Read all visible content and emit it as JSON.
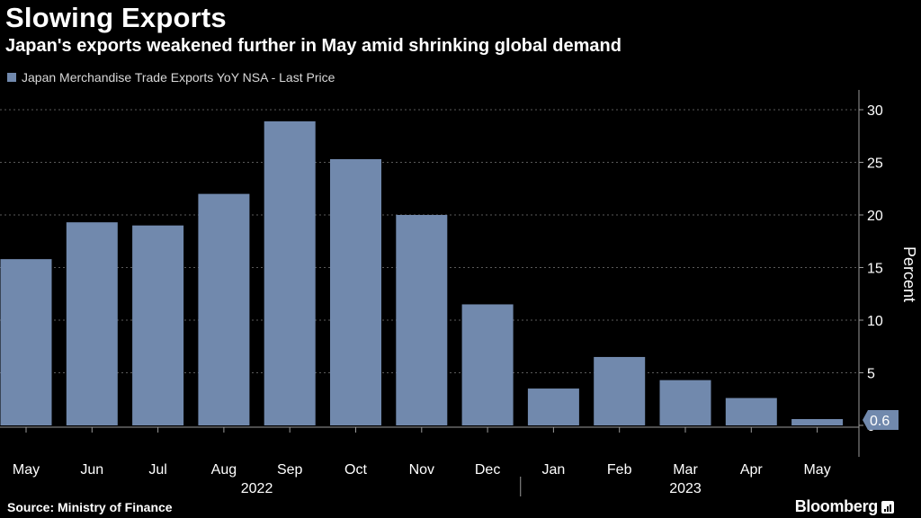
{
  "header": {
    "title": "Slowing Exports",
    "subtitle": "Japan's exports weakened further in May amid shrinking global demand"
  },
  "legend": {
    "label": "Japan Merchandise Trade Exports YoY NSA - Last Price"
  },
  "footer": {
    "source": "Source: Ministry of Finance",
    "brand": "Bloomberg"
  },
  "colors": {
    "bar": "#7189ad",
    "background": "#000000",
    "grid": "#5a5a5a",
    "text": "#ffffff",
    "callout_bg": "#7189ad"
  },
  "chart_data": {
    "type": "bar",
    "categories": [
      "May",
      "Jun",
      "Jul",
      "Aug",
      "Sep",
      "Oct",
      "Nov",
      "Dec",
      "Jan",
      "Feb",
      "Mar",
      "Apr",
      "May"
    ],
    "year_groups": [
      {
        "label": "2022",
        "start": 0,
        "end": 7
      },
      {
        "label": "2023",
        "start": 8,
        "end": 12
      }
    ],
    "series": [
      {
        "name": "Japan Merchandise Trade Exports YoY NSA - Last Price",
        "values": [
          15.8,
          19.3,
          19.0,
          22.0,
          28.9,
          25.3,
          20.0,
          11.5,
          3.5,
          6.5,
          4.3,
          2.6,
          0.6
        ]
      }
    ],
    "last_value_label": "0.6",
    "ylabel": "Percent",
    "ylim": [
      0,
      30
    ],
    "yticks": [
      0,
      5,
      10,
      15,
      20,
      25,
      30
    ],
    "y_axis_side": "right",
    "grid": true,
    "legend_position": "top-left"
  }
}
